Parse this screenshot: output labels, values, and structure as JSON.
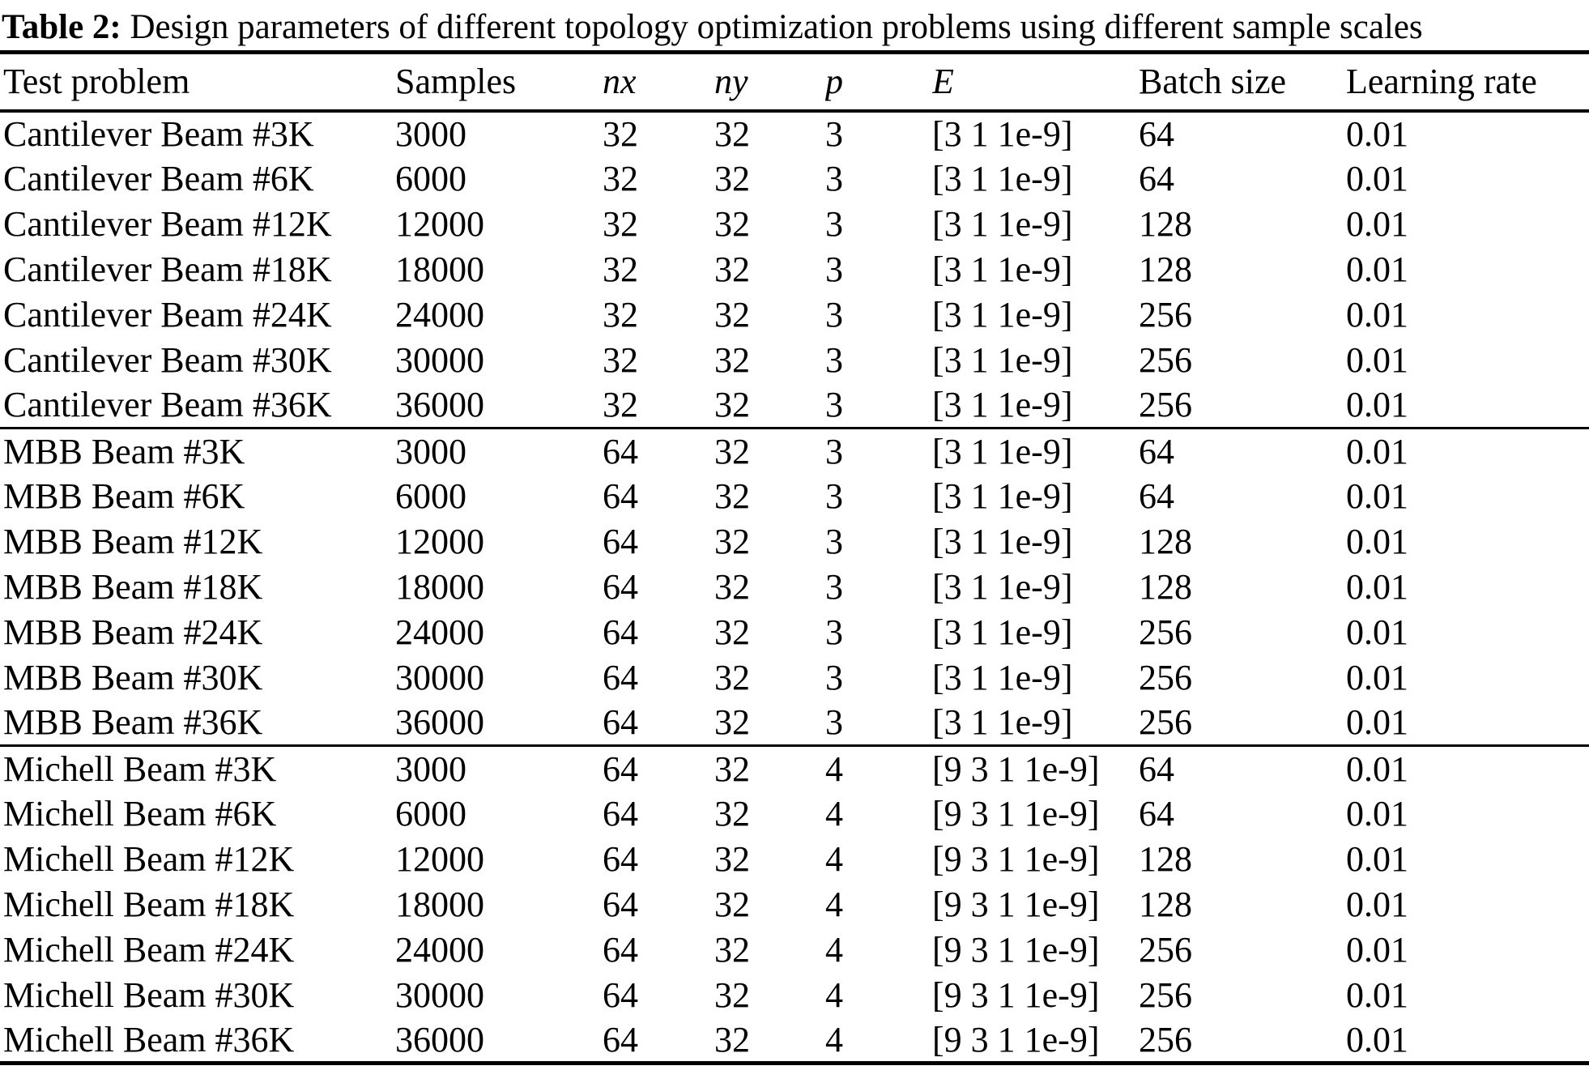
{
  "caption": {
    "label": "Table 2:",
    "text": " Design parameters of different topology optimization problems using different sample scales"
  },
  "table": {
    "columns": [
      {
        "label": "Test problem",
        "italic": false
      },
      {
        "label": "Samples",
        "italic": false
      },
      {
        "label": "nx",
        "italic": true
      },
      {
        "label": "ny",
        "italic": true
      },
      {
        "label": "p",
        "italic": true
      },
      {
        "label": "E",
        "italic": true
      },
      {
        "label": "Batch size",
        "italic": false
      },
      {
        "label": "Learning rate",
        "italic": false
      }
    ],
    "sections": [
      {
        "name": "cantilever-beam",
        "rows": [
          [
            "Cantilever Beam #3K",
            "3000",
            "32",
            "32",
            "3",
            "[3 1 1e-9]",
            "64",
            "0.01"
          ],
          [
            "Cantilever Beam #6K",
            "6000",
            "32",
            "32",
            "3",
            "[3 1 1e-9]",
            "64",
            "0.01"
          ],
          [
            "Cantilever Beam #12K",
            "12000",
            "32",
            "32",
            "3",
            "[3 1 1e-9]",
            "128",
            "0.01"
          ],
          [
            "Cantilever Beam #18K",
            "18000",
            "32",
            "32",
            "3",
            "[3 1 1e-9]",
            "128",
            "0.01"
          ],
          [
            "Cantilever Beam #24K",
            "24000",
            "32",
            "32",
            "3",
            "[3 1 1e-9]",
            "256",
            "0.01"
          ],
          [
            "Cantilever Beam #30K",
            "30000",
            "32",
            "32",
            "3",
            "[3 1 1e-9]",
            "256",
            "0.01"
          ],
          [
            "Cantilever Beam #36K",
            "36000",
            "32",
            "32",
            "3",
            "[3 1 1e-9]",
            "256",
            "0.01"
          ]
        ]
      },
      {
        "name": "mbb-beam",
        "rows": [
          [
            "MBB Beam #3K",
            "3000",
            "64",
            "32",
            "3",
            "[3 1 1e-9]",
            "64",
            "0.01"
          ],
          [
            "MBB Beam #6K",
            "6000",
            "64",
            "32",
            "3",
            "[3 1 1e-9]",
            "64",
            "0.01"
          ],
          [
            "MBB Beam #12K",
            "12000",
            "64",
            "32",
            "3",
            "[3 1 1e-9]",
            "128",
            "0.01"
          ],
          [
            "MBB Beam #18K",
            "18000",
            "64",
            "32",
            "3",
            "[3 1 1e-9]",
            "128",
            "0.01"
          ],
          [
            "MBB Beam #24K",
            "24000",
            "64",
            "32",
            "3",
            "[3 1 1e-9]",
            "256",
            "0.01"
          ],
          [
            "MBB Beam #30K",
            "30000",
            "64",
            "32",
            "3",
            "[3 1 1e-9]",
            "256",
            "0.01"
          ],
          [
            "MBB Beam #36K",
            "36000",
            "64",
            "32",
            "3",
            "[3 1 1e-9]",
            "256",
            "0.01"
          ]
        ]
      },
      {
        "name": "michell-beam",
        "rows": [
          [
            "Michell Beam #3K",
            "3000",
            "64",
            "32",
            "4",
            "[9 3 1 1e-9]",
            "64",
            "0.01"
          ],
          [
            "Michell Beam #6K",
            "6000",
            "64",
            "32",
            "4",
            "[9 3 1 1e-9]",
            "64",
            "0.01"
          ],
          [
            "Michell Beam #12K",
            "12000",
            "64",
            "32",
            "4",
            "[9 3 1 1e-9]",
            "128",
            "0.01"
          ],
          [
            "Michell Beam #18K",
            "18000",
            "64",
            "32",
            "4",
            "[9 3 1 1e-9]",
            "128",
            "0.01"
          ],
          [
            "Michell Beam #24K",
            "24000",
            "64",
            "32",
            "4",
            "[9 3 1 1e-9]",
            "256",
            "0.01"
          ],
          [
            "Michell Beam #30K",
            "30000",
            "64",
            "32",
            "4",
            "[9 3 1 1e-9]",
            "256",
            "0.01"
          ],
          [
            "Michell Beam #36K",
            "36000",
            "64",
            "32",
            "4",
            "[9 3 1 1e-9]",
            "256",
            "0.01"
          ]
        ]
      }
    ]
  }
}
